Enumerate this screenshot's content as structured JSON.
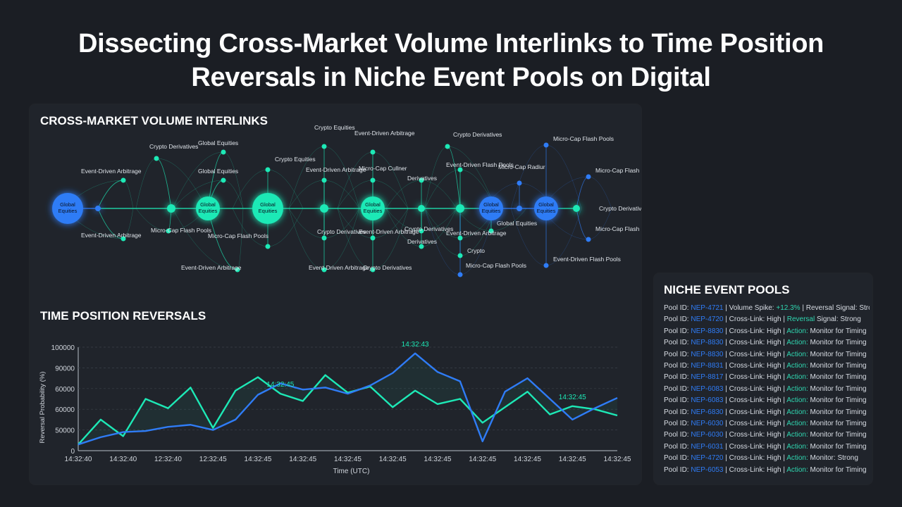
{
  "page": {
    "title_line1": "Dissecting Cross-Market Volume Interlinks to Time Position",
    "title_line2": "Reversals in Niche Event Pools on Digital"
  },
  "network": {
    "heading": "CROSS-MARKET VOLUME INTERLINKS",
    "colors": {
      "teal": "#1de9b6",
      "blue": "#2f7cf6"
    },
    "labels": [
      "Global Equities",
      "Event-Driven Arbitrage",
      "Crypto Derivatives",
      "Event-Driven Arbitrage",
      "Crypto Derivatives",
      "Micro-Cap Flash Pools",
      "Global Equities",
      "Global Equities",
      "Global Equities",
      "Crypto Equities",
      "Micro-Cap Flash Pools",
      "Event-Driven Arbitrage",
      "Global Equities",
      "Crypto Equities",
      "Event-Driven Arbitrage",
      "Event-Driven Arbitrage",
      "Crypto Derivatives",
      "Event-Driven Arbitrage",
      "Global Equities",
      "Event-Driven Arbitrage",
      "Micro-Cap Cullner",
      "Event-Driven Arbitrage",
      "Crypto Derivatives",
      "Derivatives",
      "Crypto Derivatives",
      "Derivatives",
      "Crypto Derivatives",
      "Event-Driven Flash Pools",
      "Global Equities",
      "Event-Driven Arbitrage",
      "Crypto",
      "Micro-Cap Flash Pools",
      "Micro-Cap Flash Pools",
      "Micro-Cap Radiur",
      "Global Equities",
      "Global Equities",
      "Micro-Cap Flash Pools",
      "Crypto Derivatives",
      "Micro-Cap Flash Pools",
      "Event-Driven Flash Pools",
      "Global Equities"
    ]
  },
  "reversals": {
    "heading": "TIME POSITION REVERSALS"
  },
  "chart_data": {
    "type": "line",
    "xlabel": "Time (UTC)",
    "ylabel": "Reversal Probability (%)",
    "x_tick_labels": [
      "14:32:40",
      "14:32:40",
      "12:32:40",
      "12:32:45",
      "14:32:45",
      "14:32:45",
      "14:32:45",
      "14:32:45",
      "14:32:45",
      "14:32:45",
      "14:32:45",
      "14:32:45",
      "14:32:45"
    ],
    "y_tick_labels": [
      "0",
      "50000",
      "60000",
      "60000",
      "90000",
      "100000"
    ],
    "x": [
      0,
      0.5,
      1,
      1.5,
      2,
      2.5,
      3,
      3.5,
      4,
      4.5,
      5,
      5.5,
      6,
      6.5,
      7,
      7.5,
      8,
      8.5,
      9,
      9.5,
      10,
      10.5,
      11,
      11.5,
      12
    ],
    "series": [
      {
        "color": "#1de9b6",
        "values": [
          6,
          30,
          14,
          50,
          41,
          61,
          22,
          58,
          71,
          55,
          48,
          73,
          56,
          62,
          42,
          58,
          45,
          50,
          27,
          42,
          57,
          35,
          43,
          40,
          34
        ]
      },
      {
        "color": "#2f7cf6",
        "values": [
          6,
          13,
          18,
          19,
          23,
          25,
          20,
          30,
          54,
          65,
          59,
          61,
          55,
          63,
          75,
          94,
          76,
          67,
          9,
          57,
          70,
          50,
          30,
          41,
          51
        ]
      }
    ],
    "annotations": [
      {
        "text": "14:32:45",
        "series": 0,
        "x": 4.5
      },
      {
        "text": "14:32:43",
        "series": 1,
        "x": 7.5
      },
      {
        "text": "14:32:45",
        "series": 0,
        "x": 11.0
      }
    ]
  },
  "pools": {
    "heading": "NICHE EVENT POOLS",
    "rows": [
      {
        "prefix": "Pool ID:",
        "id": "NEP-4721",
        "mid": "| Volume Spike:",
        "highlight": "+12.3%",
        "rest": "| Reversal Signal: Strong"
      },
      {
        "prefix": "Pool ID:",
        "id": "NEP-4720",
        "mid": "| Cross-Link: High |",
        "highlight": "Reversal",
        "rest": "Signal: Strong"
      },
      {
        "prefix": "Pool ID:",
        "id": "NEP-8830",
        "mid": "| Cross-Link: High |",
        "highlight": "Action:",
        "rest": "Monitor for Timing"
      },
      {
        "prefix": "Pool ID:",
        "id": "NEP-8830",
        "mid": "| Cross-Link: High |",
        "highlight": "Action:",
        "rest": "Monitor for Timing"
      },
      {
        "prefix": "Pool ID:",
        "id": "NEP-8830",
        "mid": "| Cross-Link: High |",
        "highlight": "Action:",
        "rest": "Monitor for Timing"
      },
      {
        "prefix": "Pool ID:",
        "id": "NEP-8831",
        "mid": "| Cross-Link: High |",
        "highlight": "Action:",
        "rest": "Monitor for Timing"
      },
      {
        "prefix": "Pool ID:",
        "id": "NEP-8817",
        "mid": "| Cross-Link: High |",
        "highlight": "Action:",
        "rest": "Monitor for Timing"
      },
      {
        "prefix": "Pool ID:",
        "id": "NEP-6083",
        "mid": "| Cross-Link: High |",
        "highlight": "Action:",
        "rest": "Monitor for Timing"
      },
      {
        "prefix": "Pool ID:",
        "id": "NEP-6083",
        "mid": "| Cross-Link: High |",
        "highlight": "Action:",
        "rest": "Monitor for Timing"
      },
      {
        "prefix": "Pool ID:",
        "id": "NEP-6830",
        "mid": "| Cross-Link: High |",
        "highlight": "Action:",
        "rest": "Monitor for Timing"
      },
      {
        "prefix": "Pool ID:",
        "id": "NEP-6030",
        "mid": "| Cross-Link: High |",
        "highlight": "Action:",
        "rest": "Monitor for Timing"
      },
      {
        "prefix": "Pool ID:",
        "id": "NEP-6030",
        "mid": "| Cross-Link: High |",
        "highlight": "Action:",
        "rest": "Monitor for Timing"
      },
      {
        "prefix": "Pool ID:",
        "id": "NEP-6031",
        "mid": "| Cross-Link: High |",
        "highlight": "Action:",
        "rest": "Monitor for Timing"
      },
      {
        "prefix": "Pool ID:",
        "id": "NEP-4720",
        "mid": "| Cross-Link: High |",
        "highlight": "Action:",
        "rest": "Monitor: Strong"
      },
      {
        "prefix": "Pool ID:",
        "id": "NEP-6053",
        "mid": "| Cross-Link: High |",
        "highlight": "Action:",
        "rest": "Monitor for Timing"
      }
    ]
  }
}
